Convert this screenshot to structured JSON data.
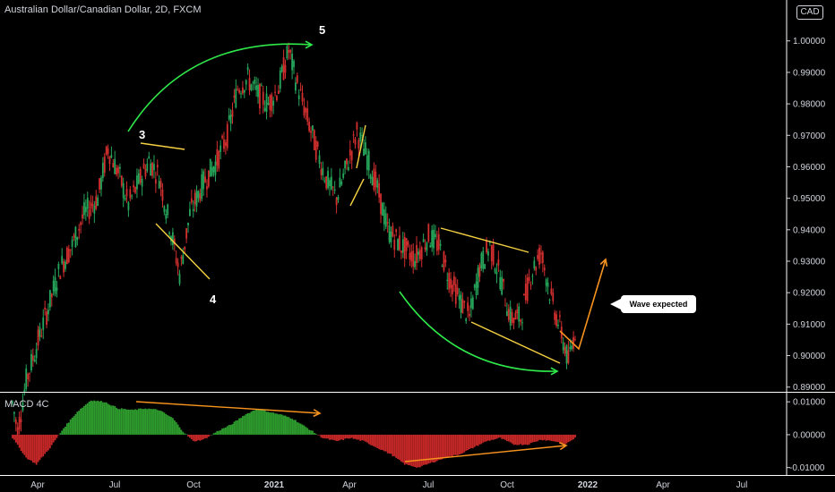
{
  "header": {
    "title": "Australian Dollar/Canadian Dollar, 2D, FXCM",
    "currency_badge": "CAD"
  },
  "indicator": {
    "title": "MACD 4C"
  },
  "callout": {
    "text": "Wave expected"
  },
  "wave_labels": {
    "w3": "3",
    "w4": "4",
    "w5": "5"
  },
  "colors": {
    "up": "#26a65b",
    "down": "#d32f2f",
    "macd_pos": "#2e9d2e",
    "macd_neg": "#c62828",
    "arc": "#2ee84a",
    "pattern": "#f5d142",
    "projection": "#f7931e",
    "background": "#000000"
  },
  "chart_data": [
    {
      "type": "candlestick",
      "title": "Australian Dollar/Canadian Dollar, 2D, FXCM",
      "x_tick_labels": [
        "Apr",
        "Jul",
        "Oct",
        "2021",
        "Apr",
        "Jul",
        "Oct",
        "2022",
        "Apr",
        "Jul"
      ],
      "y_tick_labels": [
        "1.00000",
        "0.99000",
        "0.98000",
        "0.97000",
        "0.96000",
        "0.95000",
        "0.94000",
        "0.93000",
        "0.92000",
        "0.91000",
        "0.90000",
        "0.89000"
      ],
      "ylim": [
        0.8885,
        1.013
      ],
      "anchors": [
        [
          0,
          0.885
        ],
        [
          3,
          0.876
        ],
        [
          8,
          0.892
        ],
        [
          18,
          0.91
        ],
        [
          28,
          0.928
        ],
        [
          35,
          0.935
        ],
        [
          42,
          0.945
        ],
        [
          50,
          0.95
        ],
        [
          56,
          0.966
        ],
        [
          62,
          0.958
        ],
        [
          68,
          0.948
        ],
        [
          74,
          0.955
        ],
        [
          80,
          0.962
        ],
        [
          86,
          0.957
        ],
        [
          92,
          0.942
        ],
        [
          98,
          0.926
        ],
        [
          104,
          0.945
        ],
        [
          112,
          0.955
        ],
        [
          120,
          0.962
        ],
        [
          126,
          0.97
        ],
        [
          132,
          0.985
        ],
        [
          138,
          0.988
        ],
        [
          144,
          0.983
        ],
        [
          150,
          0.98
        ],
        [
          156,
          0.985
        ],
        [
          162,
          0.997
        ],
        [
          166,
          0.988
        ],
        [
          172,
          0.977
        ],
        [
          178,
          0.966
        ],
        [
          184,
          0.956
        ],
        [
          190,
          0.95
        ],
        [
          196,
          0.96
        ],
        [
          202,
          0.971
        ],
        [
          208,
          0.963
        ],
        [
          214,
          0.953
        ],
        [
          220,
          0.94
        ],
        [
          228,
          0.935
        ],
        [
          236,
          0.931
        ],
        [
          244,
          0.938
        ],
        [
          250,
          0.935
        ],
        [
          256,
          0.925
        ],
        [
          262,
          0.918
        ],
        [
          268,
          0.912
        ],
        [
          274,
          0.928
        ],
        [
          280,
          0.935
        ],
        [
          286,
          0.925
        ],
        [
          292,
          0.912
        ],
        [
          298,
          0.912
        ],
        [
          304,
          0.926
        ],
        [
          310,
          0.933
        ],
        [
          316,
          0.918
        ],
        [
          322,
          0.907
        ],
        [
          326,
          0.898
        ],
        [
          330,
          0.908
        ]
      ],
      "price_min": 0.87,
      "price_max": 1.0
    },
    {
      "type": "bar",
      "title": "MACD 4C",
      "y_tick_labels": [
        "0.01000",
        "0.00000",
        "-0.01000"
      ],
      "ylim": [
        -0.012,
        0.0125
      ],
      "anchors": [
        [
          0,
          -0.001
        ],
        [
          8,
          -0.007
        ],
        [
          14,
          -0.009
        ],
        [
          22,
          -0.004
        ],
        [
          30,
          0.002
        ],
        [
          38,
          0.007
        ],
        [
          46,
          0.0105
        ],
        [
          54,
          0.01
        ],
        [
          62,
          0.008
        ],
        [
          70,
          0.0075
        ],
        [
          78,
          0.008
        ],
        [
          86,
          0.0075
        ],
        [
          94,
          0.005
        ],
        [
          100,
          0.001
        ],
        [
          106,
          -0.002
        ],
        [
          112,
          -0.0015
        ],
        [
          120,
          0.001
        ],
        [
          128,
          0.003
        ],
        [
          136,
          0.006
        ],
        [
          144,
          0.008
        ],
        [
          150,
          0.007
        ],
        [
          158,
          0.006
        ],
        [
          164,
          0.005
        ],
        [
          170,
          0.003
        ],
        [
          176,
          0.001
        ],
        [
          182,
          -0.001
        ],
        [
          190,
          -0.002
        ],
        [
          198,
          -0.001
        ],
        [
          206,
          -0.002
        ],
        [
          214,
          -0.004
        ],
        [
          222,
          -0.006
        ],
        [
          230,
          -0.009
        ],
        [
          238,
          -0.01
        ],
        [
          246,
          -0.0085
        ],
        [
          254,
          -0.007
        ],
        [
          262,
          -0.006
        ],
        [
          270,
          -0.004
        ],
        [
          278,
          -0.002
        ],
        [
          286,
          -0.001
        ],
        [
          294,
          -0.003
        ],
        [
          302,
          -0.003
        ],
        [
          310,
          -0.0015
        ],
        [
          318,
          -0.002
        ],
        [
          324,
          -0.003
        ],
        [
          330,
          -0.001
        ]
      ]
    }
  ]
}
